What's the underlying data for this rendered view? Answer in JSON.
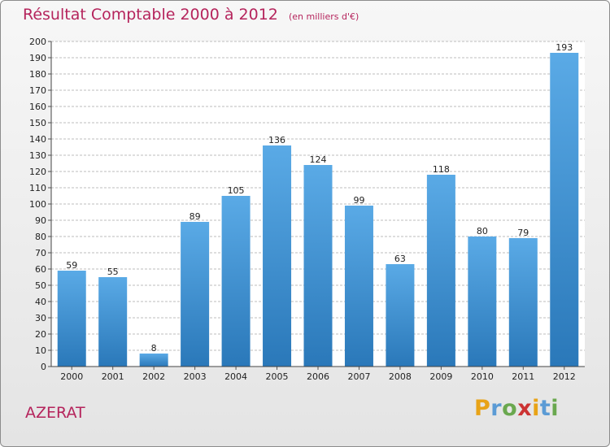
{
  "header": {
    "title": "Résultat Comptable 2000 à 2012",
    "subtitle": "(en milliers d'€)"
  },
  "footer": {
    "commune": "AZERAT",
    "logo_letters": [
      "P",
      "r",
      "o",
      "x",
      "i",
      "t",
      "i"
    ],
    "logo_colors": [
      "#e8a317",
      "#5b9bd5",
      "#6aa84f",
      "#cc3333",
      "#e8a317",
      "#5b9bd5",
      "#6aa84f"
    ]
  },
  "colors": {
    "bar_light": "#5aaae6",
    "bar_dark": "#2a78b9",
    "grid": "#bcbcbc",
    "plot_bg": "#ffffff"
  },
  "chart_data": {
    "type": "bar",
    "title": "Résultat Comptable 2000 à 2012",
    "subtitle": "(en milliers d'€)",
    "xlabel": "",
    "ylabel": "",
    "categories": [
      "2000",
      "2001",
      "2002",
      "2003",
      "2004",
      "2005",
      "2006",
      "2007",
      "2008",
      "2009",
      "2010",
      "2011",
      "2012"
    ],
    "values": [
      59,
      55,
      8,
      89,
      105,
      136,
      124,
      99,
      63,
      118,
      80,
      79,
      193
    ],
    "ylim": [
      0,
      200
    ],
    "yticks": [
      0,
      10,
      20,
      30,
      40,
      50,
      60,
      70,
      80,
      90,
      100,
      110,
      120,
      130,
      140,
      150,
      160,
      170,
      180,
      190,
      200
    ],
    "grid": true,
    "legend": "none"
  }
}
